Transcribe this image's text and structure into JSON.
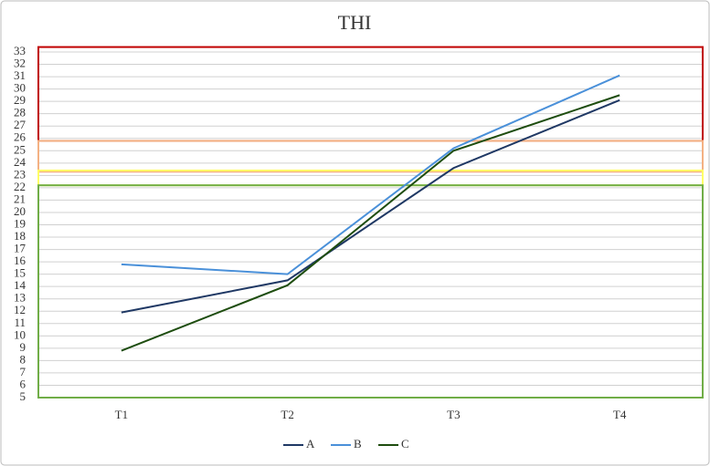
{
  "chart_data": {
    "type": "line",
    "title": "THI",
    "categories": [
      "T1",
      "T2",
      "T3",
      "T4"
    ],
    "series": [
      {
        "name": "A",
        "color": "#1f3864",
        "values": [
          11.9,
          14.5,
          23.6,
          29.1
        ]
      },
      {
        "name": "B",
        "color": "#4a90d9",
        "values": [
          15.8,
          15.0,
          25.2,
          31.1
        ]
      },
      {
        "name": "C",
        "color": "#1e4d0f",
        "values": [
          8.8,
          14.1,
          25.0,
          29.5
        ]
      }
    ],
    "bands": [
      {
        "from": 25.8,
        "to": 33.4,
        "color": "#c00000"
      },
      {
        "from": 23.3,
        "to": 25.8,
        "color": "#f4b183"
      },
      {
        "from": 22.2,
        "to": 23.4,
        "color": "#ffff66"
      },
      {
        "from": 5,
        "to": 22.2,
        "color": "#70ad47"
      }
    ],
    "ylim": [
      5,
      33
    ],
    "yticks": [
      5,
      6,
      7,
      8,
      9,
      10,
      11,
      12,
      13,
      14,
      15,
      16,
      17,
      18,
      19,
      20,
      21,
      22,
      23,
      24,
      25,
      26,
      27,
      28,
      29,
      30,
      31,
      32,
      33
    ],
    "grid": true,
    "legend": "bottom"
  }
}
